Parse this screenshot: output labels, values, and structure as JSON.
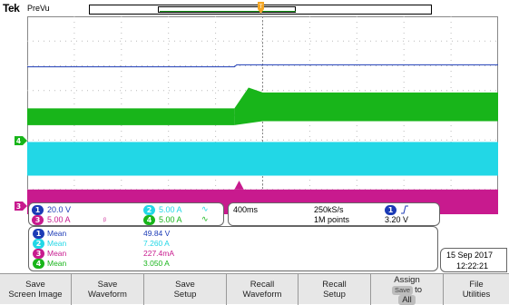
{
  "header": {
    "brand": "Tek",
    "acq_state": "PreVu"
  },
  "colors": {
    "ch1": "#1c3bb6",
    "ch2": "#22d7e6",
    "ch3": "#c81a8e",
    "ch4": "#18b51a",
    "trigger": "#f5a623"
  },
  "channels": [
    {
      "num": "1",
      "scale": "20.0 V",
      "color": "#1c3bb6"
    },
    {
      "num": "2",
      "scale": "5.00 A",
      "color": "#22d7e6"
    },
    {
      "num": "3",
      "scale": "5.00 A",
      "color": "#c81a8e"
    },
    {
      "num": "4",
      "scale": "5.00 A",
      "color": "#18b51a"
    }
  ],
  "timebase": {
    "scale": "400ms",
    "sample_rate": "250kS/s",
    "record_length": "1M points"
  },
  "trigger": {
    "source": "1",
    "slope_icon": "rising-edge-icon",
    "level": "3.20 V"
  },
  "measurements": [
    {
      "num": "1",
      "label": "Mean",
      "value": "49.84 V",
      "color": "#1c3bb6"
    },
    {
      "num": "2",
      "label": "Mean",
      "value": "7.260 A",
      "color": "#22d7e6"
    },
    {
      "num": "3",
      "label": "Mean",
      "value": "227.4mA",
      "color": "#c81a8e"
    },
    {
      "num": "4",
      "label": "Mean",
      "value": "3.050 A",
      "color": "#18b51a"
    }
  ],
  "datetime": {
    "date": "15 Sep 2017",
    "time": "12:22:21"
  },
  "menu": [
    {
      "label": "Save\nScreen Image"
    },
    {
      "label": "Save\nWaveform"
    },
    {
      "label": "Save\nSetup"
    },
    {
      "label": "Recall\nWaveform"
    },
    {
      "label": "Recall\nSetup"
    },
    {
      "label_top": "Assign",
      "save_chip": "Save",
      "label_to": "to",
      "label_bottom": "All"
    },
    {
      "label": "File\nUtilities"
    }
  ]
}
